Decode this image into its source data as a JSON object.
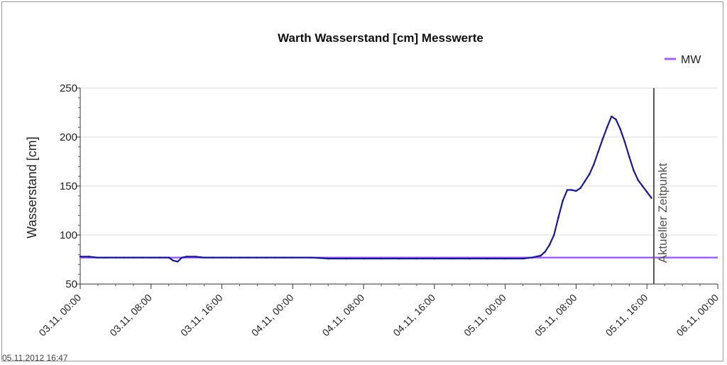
{
  "timestamp": "05.11.2012 16:47",
  "chart_data": {
    "type": "line",
    "title": "Warth Wasserstand [cm] Messwerte",
    "xlabel": "",
    "ylabel": "Wasserstand [cm]",
    "ylim": [
      50,
      250
    ],
    "yticks": [
      "50",
      "100",
      "150",
      "200",
      "250"
    ],
    "xlim_hours": [
      0,
      72
    ],
    "xticks": [
      "03.11, 00:00",
      "03.11, 08:00",
      "03.11, 16:00",
      "04.11, 00:00",
      "04.11, 08:00",
      "04.11, 16:00",
      "05.11, 00:00",
      "05.11, 08:00",
      "05.11, 16:00",
      "06.11, 00:00"
    ],
    "grid": true,
    "legend_position": "top-right",
    "reference_line": {
      "name": "MW",
      "value": 77,
      "color": "#9966ee"
    },
    "current_time_marker": {
      "label": "Aktueller Zeitpunkt",
      "x_hours": 64.78,
      "color": "#555555"
    },
    "series": [
      {
        "color": "#1a1a8c",
        "x_hours": [
          0,
          1,
          2,
          3,
          4,
          5,
          6,
          7,
          8,
          9,
          10,
          10.5,
          11,
          11.5,
          12,
          13,
          14,
          15,
          16,
          17,
          18,
          19,
          20,
          21,
          22,
          23,
          24,
          26,
          28,
          30,
          32,
          34,
          36,
          38,
          40,
          42,
          44,
          46,
          48,
          50,
          51,
          52,
          52.5,
          53,
          53.5,
          54,
          54.5,
          55,
          55.5,
          56,
          56.5,
          57,
          57.5,
          58,
          58.5,
          59,
          59.5,
          60,
          60.5,
          61,
          61.5,
          62,
          62.5,
          63,
          63.5,
          64,
          64.5
        ],
        "values": [
          78,
          78,
          77,
          77,
          77,
          77,
          77,
          77,
          77,
          77,
          77,
          74,
          73,
          77,
          78,
          78,
          77,
          77,
          77,
          77,
          77,
          77,
          77,
          77,
          77,
          77,
          77,
          77,
          76,
          76,
          76,
          76,
          76,
          76,
          76,
          76,
          76,
          76,
          76,
          76,
          77,
          79,
          83,
          90,
          100,
          118,
          135,
          146,
          146,
          145,
          148,
          155,
          162,
          172,
          185,
          198,
          210,
          221,
          218,
          208,
          195,
          180,
          166,
          156,
          150,
          144,
          138
        ]
      }
    ]
  }
}
